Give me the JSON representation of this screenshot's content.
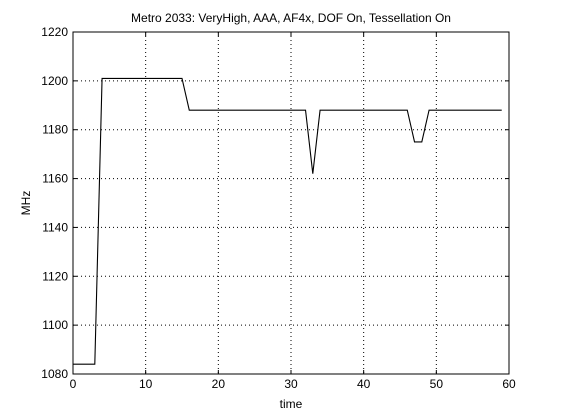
{
  "chart_data": {
    "type": "line",
    "title": "Metro 2033: VeryHigh, AAA, AF4x, DOF On, Tessellation On",
    "xlabel": "time",
    "ylabel": "MHz",
    "xlim": [
      0,
      60
    ],
    "ylim": [
      1080,
      1220
    ],
    "xticks": [
      0,
      10,
      20,
      30,
      40,
      50,
      60
    ],
    "yticks": [
      1080,
      1100,
      1120,
      1140,
      1160,
      1180,
      1200,
      1220
    ],
    "xtick_labels": [
      "0",
      "10",
      "20",
      "30",
      "40",
      "50",
      "60"
    ],
    "ytick_labels": [
      "1080",
      "1100",
      "1120",
      "1140",
      "1160",
      "1180",
      "1200",
      "1220"
    ],
    "grid": true,
    "grid_style": "dotted",
    "series": [
      {
        "color": "#000000",
        "x": [
          0,
          3,
          4,
          15,
          16,
          32,
          33,
          34,
          46,
          47,
          48,
          49,
          59
        ],
        "y": [
          1084,
          1084,
          1201,
          1201,
          1188,
          1188,
          1162,
          1188,
          1188,
          1175,
          1175,
          1188,
          1188
        ]
      }
    ]
  }
}
